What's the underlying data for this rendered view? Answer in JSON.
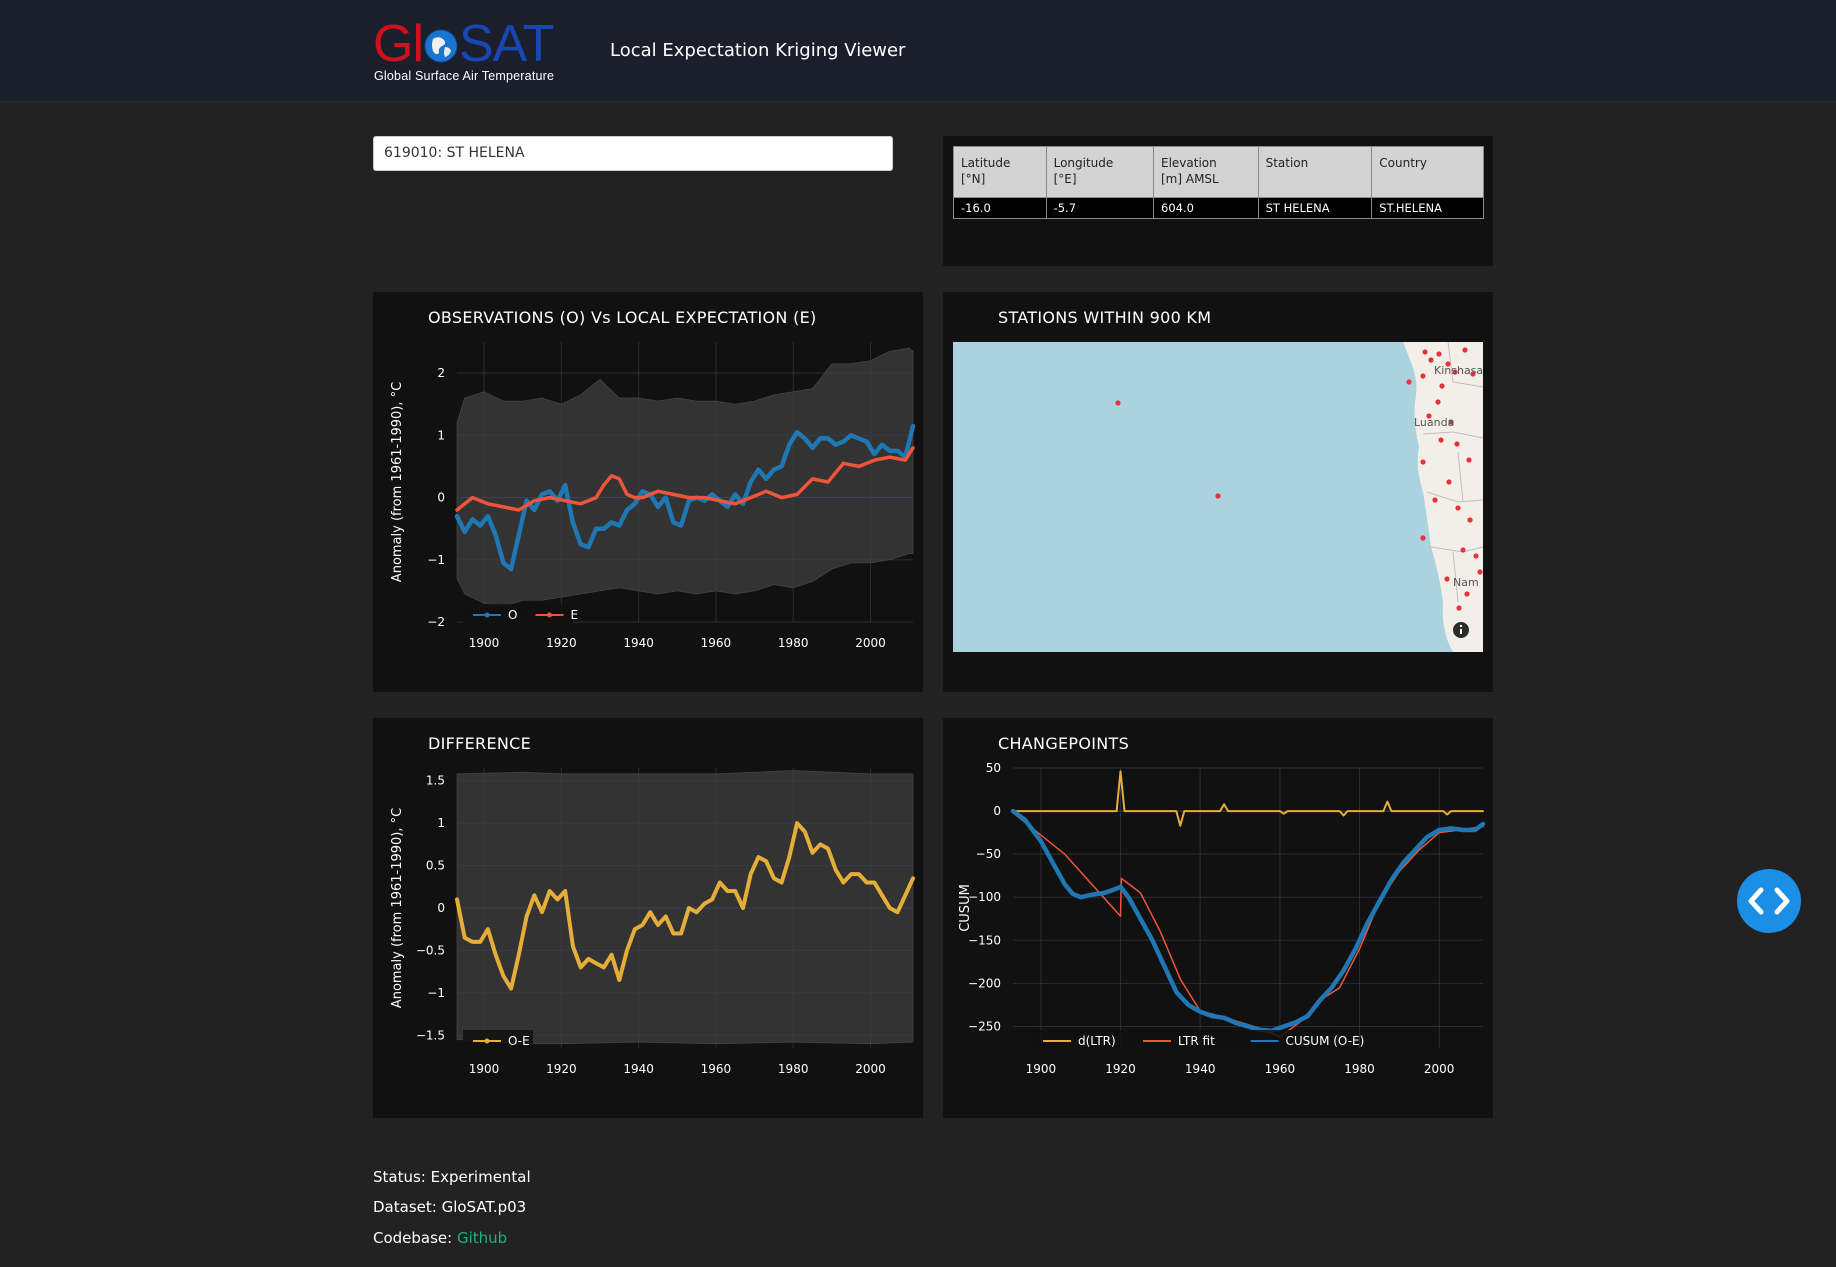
{
  "header": {
    "logo_text_gl": "Gl",
    "logo_text_sat": "SAT",
    "logo_subtitle": "Global Surface Air Temperature",
    "app_title": "Local Expectation Kriging Viewer"
  },
  "station_selector": {
    "value": "619010: ST HELENA"
  },
  "station_table": {
    "headers": [
      "Latitude\n [°N]",
      "Longitude\n [°E]",
      "Elevation\n [m] AMSL",
      "Station",
      "Country"
    ],
    "row": [
      "-16.0",
      "-5.7",
      "604.0",
      "ST HELENA",
      "ST.HELENA"
    ]
  },
  "panels": {
    "obs_title": "OBSERVATIONS (O) Vs LOCAL EXPECTATION (E)",
    "map_title": "STATIONS WITHIN 900 KM",
    "diff_title": "DIFFERENCE",
    "cp_title": "CHANGEPOINTS"
  },
  "map": {
    "labels": [
      "Kinshasa",
      "Luanda",
      "Nam"
    ],
    "info_icon": "info-icon",
    "ocean_color": "#aad3df",
    "land_color": "#f2efe9",
    "station_color": "#e8323c"
  },
  "colors": {
    "obs": "#1f77b4",
    "exp": "#ef553b",
    "diff": "#e5ae38",
    "band": "#333333",
    "grid": "#3a4150",
    "link": "#1db37a",
    "toggle": "#1a8fe5"
  },
  "chart_data": [
    {
      "type": "line",
      "title": "OBSERVATIONS (O) Vs LOCAL EXPECTATION (E)",
      "xlabel": "",
      "ylabel": "Anomaly (from 1961-1990), °C",
      "xlim": [
        1893,
        2011
      ],
      "ylim": [
        -2,
        2.5
      ],
      "xticks": [
        1900,
        1920,
        1940,
        1960,
        1980,
        2000
      ],
      "yticks": [
        -2,
        -1,
        0,
        1,
        2
      ],
      "legend": "bottom-left",
      "band": {
        "x": [
          1893,
          1895,
          1900,
          1905,
          1910,
          1915,
          1920,
          1925,
          1930,
          1935,
          1940,
          1945,
          1950,
          1955,
          1960,
          1965,
          1970,
          1975,
          1980,
          1985,
          1990,
          1995,
          2000,
          2005,
          2010,
          2011
        ],
        "upper": [
          1.2,
          1.6,
          1.7,
          1.55,
          1.55,
          1.6,
          1.5,
          1.65,
          1.9,
          1.6,
          1.6,
          1.55,
          1.6,
          1.55,
          1.55,
          1.5,
          1.55,
          1.65,
          1.7,
          1.75,
          2.15,
          2.15,
          2.2,
          2.35,
          2.4,
          2.35
        ],
        "lower": [
          -1.3,
          -1.55,
          -1.7,
          -1.75,
          -1.65,
          -1.65,
          -1.6,
          -1.55,
          -1.5,
          -1.45,
          -1.5,
          -1.55,
          -1.5,
          -1.55,
          -1.5,
          -1.55,
          -1.5,
          -1.4,
          -1.45,
          -1.35,
          -1.15,
          -1.05,
          -1.05,
          -1.0,
          -0.9,
          -0.9
        ]
      },
      "series": [
        {
          "name": "O",
          "x": [
            1893,
            1895,
            1897,
            1899,
            1901,
            1903,
            1905,
            1907,
            1909,
            1911,
            1913,
            1915,
            1917,
            1919,
            1921,
            1923,
            1925,
            1927,
            1929,
            1931,
            1933,
            1935,
            1937,
            1939,
            1941,
            1943,
            1945,
            1947,
            1949,
            1951,
            1953,
            1955,
            1957,
            1959,
            1961,
            1963,
            1965,
            1967,
            1969,
            1971,
            1973,
            1975,
            1977,
            1979,
            1981,
            1983,
            1985,
            1987,
            1989,
            1991,
            1993,
            1995,
            1997,
            1999,
            2001,
            2003,
            2005,
            2007,
            2009,
            2011
          ],
          "y": [
            -0.3,
            -0.55,
            -0.35,
            -0.45,
            -0.3,
            -0.6,
            -1.05,
            -1.15,
            -0.6,
            -0.05,
            -0.2,
            0.05,
            0.1,
            -0.05,
            0.2,
            -0.4,
            -0.75,
            -0.8,
            -0.5,
            -0.5,
            -0.4,
            -0.45,
            -0.2,
            -0.1,
            0.1,
            0.05,
            -0.15,
            0.0,
            -0.4,
            -0.45,
            -0.05,
            0.0,
            -0.05,
            0.05,
            -0.05,
            -0.15,
            0.05,
            -0.1,
            0.25,
            0.45,
            0.3,
            0.45,
            0.5,
            0.85,
            1.05,
            0.95,
            0.8,
            0.95,
            0.95,
            0.85,
            0.9,
            1.0,
            0.95,
            0.9,
            0.7,
            0.85,
            0.75,
            0.75,
            0.65,
            1.15
          ]
        },
        {
          "name": "E",
          "x": [
            1893,
            1897,
            1901,
            1905,
            1909,
            1913,
            1917,
            1921,
            1925,
            1929,
            1931,
            1933,
            1935,
            1937,
            1939,
            1941,
            1945,
            1949,
            1953,
            1957,
            1961,
            1965,
            1969,
            1973,
            1977,
            1981,
            1985,
            1989,
            1993,
            1997,
            2001,
            2005,
            2009,
            2011
          ],
          "y": [
            -0.2,
            0.0,
            -0.1,
            -0.15,
            -0.2,
            -0.05,
            0.0,
            -0.05,
            -0.1,
            0.0,
            0.2,
            0.35,
            0.3,
            0.05,
            0.0,
            0.0,
            0.1,
            0.05,
            0.0,
            0.0,
            -0.05,
            -0.1,
            0.0,
            0.1,
            0.0,
            0.05,
            0.3,
            0.25,
            0.55,
            0.5,
            0.6,
            0.65,
            0.6,
            0.8
          ]
        }
      ]
    },
    {
      "type": "line",
      "title": "DIFFERENCE",
      "xlabel": "",
      "ylabel": "Anomaly (from 1961-1990), °C",
      "xlim": [
        1893,
        2011
      ],
      "ylim": [
        -1.65,
        1.65
      ],
      "xticks": [
        1900,
        1920,
        1940,
        1960,
        1980,
        2000
      ],
      "yticks": [
        -1.5,
        -1,
        -0.5,
        0,
        0.5,
        1,
        1.5
      ],
      "legend": "bottom-left",
      "band": {
        "x": [
          1893,
          1910,
          1920,
          1940,
          1960,
          1980,
          2000,
          2011
        ],
        "upper": [
          1.58,
          1.6,
          1.58,
          1.58,
          1.58,
          1.62,
          1.58,
          1.58
        ],
        "lower": [
          -1.55,
          -1.6,
          -1.6,
          -1.58,
          -1.6,
          -1.58,
          -1.6,
          -1.58
        ]
      },
      "series": [
        {
          "name": "O-E",
          "x": [
            1893,
            1895,
            1897,
            1899,
            1901,
            1903,
            1905,
            1907,
            1909,
            1911,
            1913,
            1915,
            1917,
            1919,
            1921,
            1923,
            1925,
            1927,
            1929,
            1931,
            1933,
            1935,
            1937,
            1939,
            1941,
            1943,
            1945,
            1947,
            1949,
            1951,
            1953,
            1955,
            1957,
            1959,
            1961,
            1963,
            1965,
            1967,
            1969,
            1971,
            1973,
            1975,
            1977,
            1979,
            1981,
            1983,
            1985,
            1987,
            1989,
            1991,
            1993,
            1995,
            1997,
            1999,
            2001,
            2003,
            2005,
            2007,
            2009,
            2011
          ],
          "y": [
            0.1,
            -0.35,
            -0.4,
            -0.4,
            -0.25,
            -0.55,
            -0.8,
            -0.95,
            -0.55,
            -0.1,
            0.15,
            -0.05,
            0.2,
            0.1,
            0.2,
            -0.45,
            -0.7,
            -0.6,
            -0.65,
            -0.7,
            -0.55,
            -0.85,
            -0.5,
            -0.25,
            -0.2,
            -0.05,
            -0.2,
            -0.1,
            -0.3,
            -0.3,
            0.0,
            -0.05,
            0.05,
            0.1,
            0.3,
            0.2,
            0.2,
            0.0,
            0.4,
            0.6,
            0.55,
            0.35,
            0.3,
            0.6,
            1.0,
            0.9,
            0.65,
            0.75,
            0.7,
            0.45,
            0.3,
            0.4,
            0.4,
            0.3,
            0.3,
            0.15,
            0.0,
            -0.05,
            0.15,
            0.35
          ]
        }
      ]
    },
    {
      "type": "line",
      "title": "CHANGEPOINTS",
      "xlabel": "",
      "ylabel": "CUSUM",
      "xlim": [
        1893,
        2011
      ],
      "ylim": [
        -275,
        50
      ],
      "xticks": [
        1900,
        1920,
        1940,
        1960,
        1980,
        2000
      ],
      "yticks": [
        50,
        0,
        -50,
        -100,
        -150,
        -200,
        -250
      ],
      "legend": "bottom-center",
      "series": [
        {
          "name": "d(LTR)",
          "x": [
            1893,
            1919,
            1920,
            1921,
            1934,
            1935,
            1936,
            1945,
            1946,
            1947,
            1960,
            1961,
            1962,
            1975,
            1976,
            1977,
            1986,
            1987,
            1988,
            2001,
            2002,
            2003,
            2011
          ],
          "y": [
            0,
            0,
            46,
            0,
            0,
            -17,
            0,
            0,
            8,
            0,
            0,
            -3,
            0,
            0,
            -5,
            0,
            0,
            11,
            0,
            0,
            -4,
            0,
            0
          ]
        },
        {
          "name": "LTR fit",
          "x": [
            1893,
            1906,
            1920,
            1920.2,
            1925,
            1930,
            1935,
            1940,
            1945,
            1950,
            1955,
            1960,
            1965,
            1970,
            1975,
            1980,
            1985,
            1990,
            1995,
            2000,
            2005,
            2011
          ],
          "y": [
            -2,
            -50,
            -122,
            -78,
            -95,
            -140,
            -195,
            -232,
            -238,
            -245,
            -252,
            -262,
            -245,
            -220,
            -205,
            -160,
            -105,
            -70,
            -45,
            -25,
            -22,
            -18
          ]
        },
        {
          "name": "CUSUM (O-E)",
          "x": [
            1893,
            1896,
            1900,
            1903,
            1906,
            1908,
            1910,
            1913,
            1916,
            1919,
            1920,
            1922,
            1925,
            1928,
            1931,
            1934,
            1937,
            1940,
            1943,
            1946,
            1949,
            1952,
            1955,
            1958,
            1961,
            1964,
            1967,
            1970,
            1973,
            1976,
            1979,
            1982,
            1985,
            1988,
            1991,
            1994,
            1997,
            2000,
            2003,
            2006,
            2009,
            2011
          ],
          "y": [
            0,
            -10,
            -35,
            -60,
            -85,
            -96,
            -100,
            -97,
            -95,
            -90,
            -88,
            -100,
            -125,
            -150,
            -180,
            -210,
            -225,
            -233,
            -238,
            -240,
            -246,
            -250,
            -254,
            -255,
            -250,
            -245,
            -238,
            -220,
            -205,
            -185,
            -160,
            -130,
            -105,
            -80,
            -60,
            -45,
            -30,
            -22,
            -20,
            -22,
            -22,
            -15
          ]
        }
      ]
    }
  ],
  "footer": {
    "status_label": "Status:",
    "status_value": "Experimental",
    "dataset_label": "Dataset:",
    "dataset_value": "GloSAT.p03",
    "codebase_label": "Codebase:",
    "codebase_link": "Github"
  },
  "side_button_icon": "code-brackets-icon"
}
